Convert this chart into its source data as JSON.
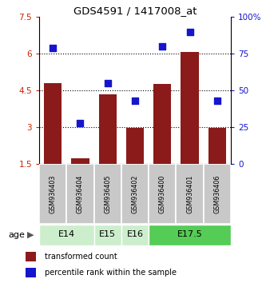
{
  "title": "GDS4591 / 1417008_at",
  "samples": [
    "GSM936403",
    "GSM936404",
    "GSM936405",
    "GSM936402",
    "GSM936400",
    "GSM936401",
    "GSM936406"
  ],
  "transformed_count": [
    4.8,
    1.75,
    4.35,
    2.97,
    4.78,
    6.08,
    2.97
  ],
  "percentile_rank": [
    79,
    28,
    55,
    43,
    80,
    90,
    43
  ],
  "bar_color": "#8B1A1A",
  "dot_color": "#1515cc",
  "ylim_left": [
    1.5,
    7.5
  ],
  "ylim_right": [
    0,
    100
  ],
  "yticks_left": [
    1.5,
    3.0,
    4.5,
    6.0,
    7.5
  ],
  "yticks_right": [
    0,
    25,
    50,
    75,
    100
  ],
  "ytick_labels_left": [
    "1.5",
    "3",
    "4.5",
    "6",
    "7.5"
  ],
  "ytick_labels_right": [
    "0",
    "25",
    "50",
    "75",
    "100%"
  ],
  "dotted_gridlines": [
    3.0,
    4.5,
    6.0
  ],
  "age_groups": [
    {
      "label": "E14",
      "start": 0,
      "end": 1,
      "color": "#cceecc"
    },
    {
      "label": "E15",
      "start": 2,
      "end": 2,
      "color": "#cceecc"
    },
    {
      "label": "E16",
      "start": 3,
      "end": 3,
      "color": "#cceecc"
    },
    {
      "label": "E17.5",
      "start": 4,
      "end": 6,
      "color": "#55cc55"
    }
  ],
  "legend_labels": [
    "transformed count",
    "percentile rank within the sample"
  ],
  "age_label": "age",
  "label_color_left": "#cc2200",
  "label_color_right": "#1515cc",
  "sample_box_color": "#c8c8c8",
  "sample_box_edge": "#ffffff"
}
